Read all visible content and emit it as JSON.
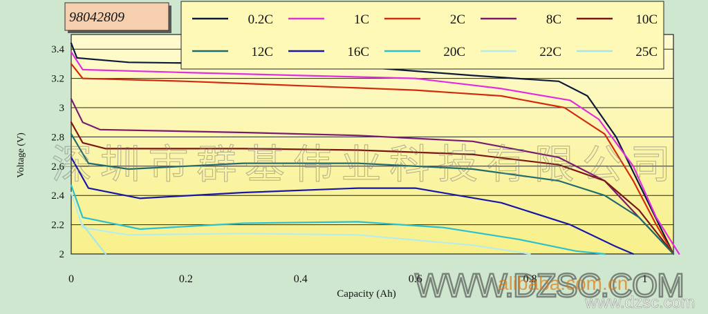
{
  "chart_id_label": "98042809",
  "watermarks": {
    "company_cn": "深圳市群基伟业科技有限公司",
    "site_bar": "WWW.DZSC.COM",
    "alibaba_partial": "alibaba.com.cn",
    "dzsc_footer": "www.dzsc.com"
  },
  "colors": {
    "page_bg": "#cfe6cf",
    "plot_bg_top": "#fffbd0",
    "plot_bg_bottom": "#f7f08a",
    "legend_bg": "#fff9b8",
    "id_tag_bg": "#f5cfae"
  },
  "chart_data": {
    "type": "line",
    "title": "",
    "xlabel": "Capacity (Ah)",
    "ylabel": "Voltage (V)",
    "xlim": [
      0,
      1.05
    ],
    "ylim": [
      2,
      3.5
    ],
    "x_ticks": [
      "0",
      "0.2",
      "0.4",
      "0.6",
      "0.8",
      "1"
    ],
    "y_ticks": [
      "2",
      "2.2",
      "2.4",
      "2.6",
      "2.8",
      "3",
      "3.2",
      "3.4"
    ],
    "grid": "horizontal",
    "legend_position": "top",
    "series": [
      {
        "name": "0.2C",
        "color": "#0b1a3a",
        "points": [
          [
            0,
            3.44
          ],
          [
            0.01,
            3.34
          ],
          [
            0.1,
            3.31
          ],
          [
            0.3,
            3.3
          ],
          [
            0.5,
            3.28
          ],
          [
            0.7,
            3.22
          ],
          [
            0.85,
            3.18
          ],
          [
            0.9,
            3.08
          ],
          [
            0.95,
            2.8
          ],
          [
            1.0,
            2.4
          ],
          [
            1.05,
            2.0
          ]
        ]
      },
      {
        "name": "1C",
        "color": "#e02de0",
        "points": [
          [
            0,
            3.38
          ],
          [
            0.02,
            3.26
          ],
          [
            0.2,
            3.24
          ],
          [
            0.4,
            3.22
          ],
          [
            0.6,
            3.2
          ],
          [
            0.75,
            3.13
          ],
          [
            0.87,
            3.05
          ],
          [
            0.92,
            2.92
          ],
          [
            0.98,
            2.6
          ],
          [
            1.02,
            2.25
          ],
          [
            1.06,
            2.0
          ]
        ]
      },
      {
        "name": "2C",
        "color": "#d22a0c",
        "points": [
          [
            0,
            3.3
          ],
          [
            0.02,
            3.2
          ],
          [
            0.2,
            3.18
          ],
          [
            0.4,
            3.15
          ],
          [
            0.6,
            3.12
          ],
          [
            0.75,
            3.08
          ],
          [
            0.86,
            3.0
          ],
          [
            0.93,
            2.82
          ],
          [
            0.98,
            2.5
          ],
          [
            1.02,
            2.2
          ],
          [
            1.05,
            2.0
          ]
        ]
      },
      {
        "name": "8C",
        "color": "#7a1a6e",
        "points": [
          [
            0,
            3.06
          ],
          [
            0.02,
            2.9
          ],
          [
            0.05,
            2.85
          ],
          [
            0.3,
            2.83
          ],
          [
            0.5,
            2.81
          ],
          [
            0.7,
            2.77
          ],
          [
            0.85,
            2.66
          ],
          [
            0.93,
            2.5
          ],
          [
            0.99,
            2.25
          ],
          [
            1.05,
            2.0
          ]
        ]
      },
      {
        "name": "10C",
        "color": "#7a1515",
        "points": [
          [
            0,
            2.9
          ],
          [
            0.02,
            2.76
          ],
          [
            0.06,
            2.72
          ],
          [
            0.3,
            2.72
          ],
          [
            0.5,
            2.71
          ],
          [
            0.7,
            2.68
          ],
          [
            0.85,
            2.61
          ],
          [
            0.93,
            2.5
          ],
          [
            0.99,
            2.3
          ],
          [
            1.05,
            2.0
          ]
        ]
      },
      {
        "name": "12C",
        "color": "#1f6b6b",
        "points": [
          [
            0,
            2.82
          ],
          [
            0.03,
            2.62
          ],
          [
            0.1,
            2.58
          ],
          [
            0.3,
            2.62
          ],
          [
            0.5,
            2.62
          ],
          [
            0.7,
            2.58
          ],
          [
            0.85,
            2.5
          ],
          [
            0.93,
            2.4
          ],
          [
            0.99,
            2.25
          ],
          [
            1.05,
            2.0
          ]
        ]
      },
      {
        "name": "16C",
        "color": "#1616a8",
        "points": [
          [
            0,
            2.66
          ],
          [
            0.03,
            2.45
          ],
          [
            0.12,
            2.38
          ],
          [
            0.3,
            2.42
          ],
          [
            0.5,
            2.45
          ],
          [
            0.6,
            2.45
          ],
          [
            0.75,
            2.35
          ],
          [
            0.87,
            2.2
          ],
          [
            0.95,
            2.05
          ],
          [
            0.98,
            2.0
          ]
        ]
      },
      {
        "name": "20C",
        "color": "#2ac0d0",
        "points": [
          [
            0,
            2.47
          ],
          [
            0.02,
            2.25
          ],
          [
            0.12,
            2.17
          ],
          [
            0.3,
            2.21
          ],
          [
            0.5,
            2.22
          ],
          [
            0.65,
            2.18
          ],
          [
            0.78,
            2.1
          ],
          [
            0.88,
            2.02
          ],
          [
            0.93,
            2.0
          ]
        ]
      },
      {
        "name": "22C",
        "color": "#b8ecec",
        "points": [
          [
            0,
            2.42
          ],
          [
            0.02,
            2.18
          ],
          [
            0.1,
            2.13
          ],
          [
            0.3,
            2.14
          ],
          [
            0.5,
            2.13
          ],
          [
            0.7,
            2.06
          ],
          [
            0.8,
            2.0
          ]
        ]
      },
      {
        "name": "25C",
        "color": "#a6e6e6",
        "points": [
          [
            0.02,
            2.2
          ],
          [
            0.05,
            2.05
          ],
          [
            0.06,
            2.0
          ]
        ]
      }
    ]
  }
}
